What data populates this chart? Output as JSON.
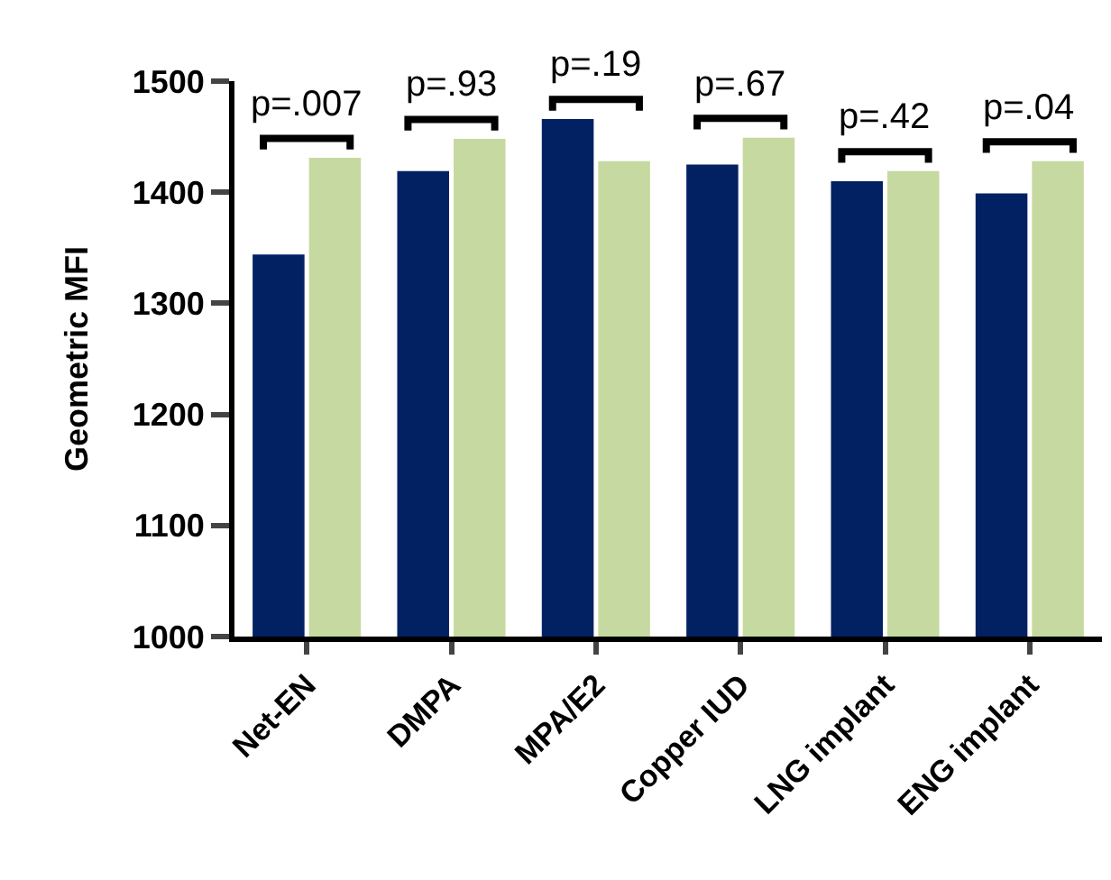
{
  "chart_data": {
    "type": "bar",
    "ylabel": "Geometric MFI",
    "categories": [
      "Net-EN",
      "DMPA",
      "MPA/E2",
      "Copper IUD",
      "LNG implant",
      "ENG implant"
    ],
    "series": [
      {
        "color": "#022163",
        "values": [
          1344,
          1419,
          1466,
          1425,
          1410,
          1399
        ]
      },
      {
        "color": "#c6d9a0",
        "values": [
          1431,
          1448,
          1428,
          1449,
          1419,
          1428
        ]
      }
    ],
    "ylim": [
      1000,
      1500
    ],
    "yticks": [
      1000,
      1100,
      1200,
      1300,
      1400,
      1500
    ],
    "grid": false,
    "annotations": [
      "p=.007",
      "p=.93",
      "p=.19",
      "p=.67",
      "p=.42",
      "p=.04"
    ]
  }
}
